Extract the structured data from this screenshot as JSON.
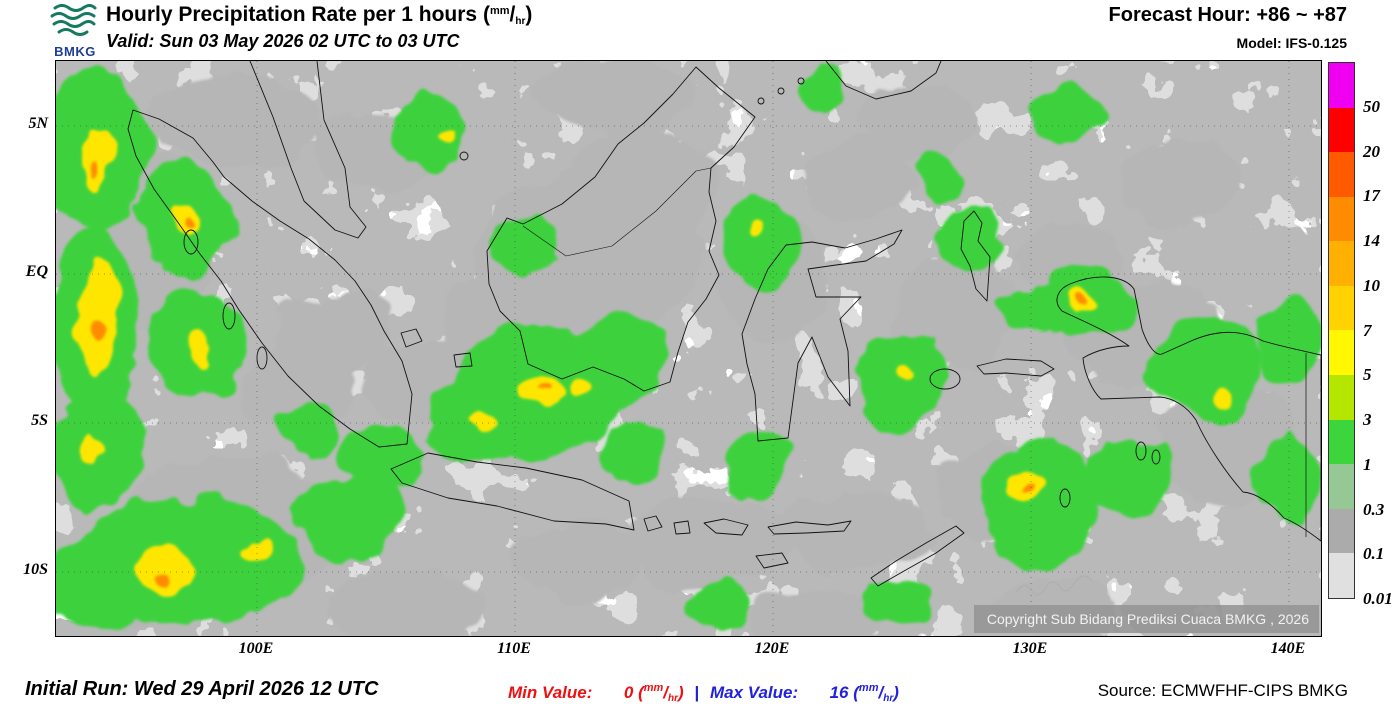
{
  "header": {
    "logo_text": "BMKG",
    "title": "Hourly Precipitation Rate per 1 hours",
    "valid": "Valid: Sun 03 May 2026 02 UTC to 03 UTC",
    "forecast_hour": "Forecast Hour: +86 ~ +87",
    "model": "Model: IFS-0.125"
  },
  "units": {
    "num": "mm",
    "den": "hr"
  },
  "map": {
    "lat_labels": [
      "5N",
      "EQ",
      "5S",
      "10S"
    ],
    "lon_labels": [
      "100E",
      "110E",
      "120E",
      "130E",
      "140E"
    ],
    "copyright": "Copyright Sub Bidang Prediksi Cuaca BMKG , 2026"
  },
  "legend": {
    "items": [
      {
        "color": "#f000f0",
        "label": "50"
      },
      {
        "color": "#ff0000",
        "label": "20"
      },
      {
        "color": "#ff5a00",
        "label": "17"
      },
      {
        "color": "#ff8c00",
        "label": "14"
      },
      {
        "color": "#ffb000",
        "label": "10"
      },
      {
        "color": "#ffd200",
        "label": "7"
      },
      {
        "color": "#fff800",
        "label": "5"
      },
      {
        "color": "#b4e600",
        "label": "3"
      },
      {
        "color": "#3cd63c",
        "label": "1"
      },
      {
        "color": "#96c896",
        "label": "0.3"
      },
      {
        "color": "#ababab",
        "label": "0.1"
      },
      {
        "color": "#e0e0e0",
        "label": "0.01"
      }
    ]
  },
  "footer": {
    "initial_run": "Initial Run: Wed 29 April 2026 12 UTC",
    "min_label": "Min Value:",
    "min_value": "0",
    "separator": "|",
    "max_label": "Max Value:",
    "max_value": "16",
    "source": "Source: ECMWFHF-CIPS BMKG"
  }
}
